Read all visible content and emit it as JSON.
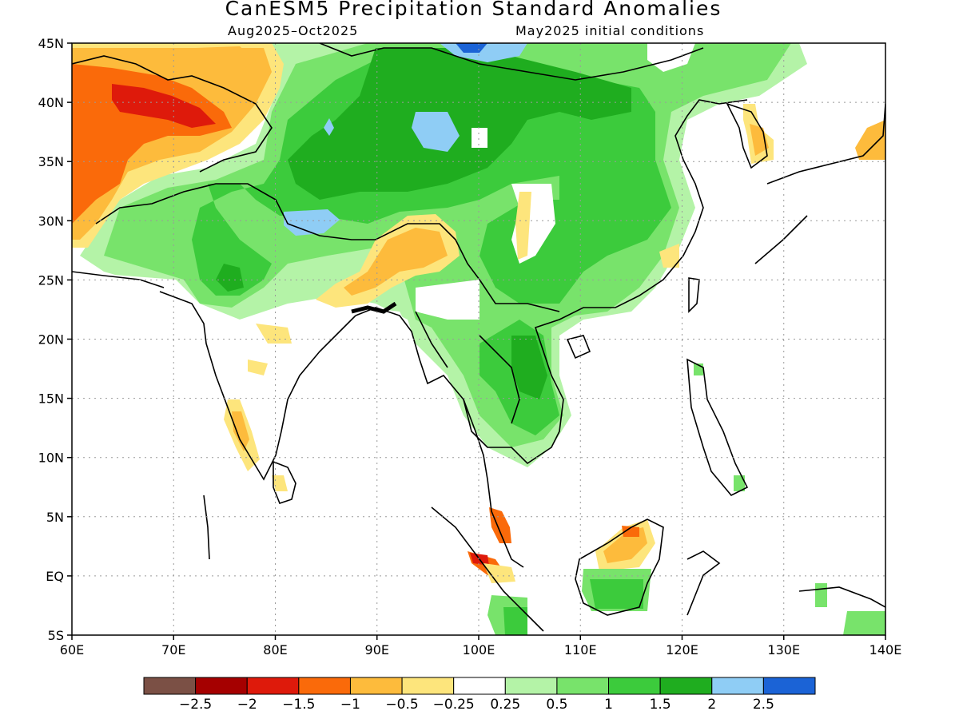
{
  "title": "CanESM5 Precipitation Standard Anomalies",
  "subtitle_left": "Aug2025–Oct2025",
  "subtitle_right": "May2025 initial conditions",
  "map": {
    "projection": "equirectangular",
    "lon_range": [
      60,
      140
    ],
    "lat_range": [
      -5,
      45
    ],
    "lat_ticks": [
      "45N",
      "40N",
      "35N",
      "30N",
      "25N",
      "20N",
      "15N",
      "10N",
      "5N",
      "EQ",
      "5S"
    ],
    "lon_ticks": [
      "60E",
      "70E",
      "80E",
      "90E",
      "100E",
      "110E",
      "120E",
      "130E",
      "140E"
    ],
    "gridlines": "dotted",
    "features": [
      "coastlines",
      "country-borders",
      "shaded-anomalies"
    ]
  },
  "colorbar": {
    "colors": [
      "#7b5045",
      "#a50000",
      "#de1a0b",
      "#fa6a0a",
      "#fdbb3c",
      "#fde57c",
      "#ffffff",
      "#b4f3a7",
      "#78e36b",
      "#3ccb3c",
      "#1fad1f",
      "#8fcdf5",
      "#1b63d6"
    ],
    "labels": [
      "−2.5",
      "−2",
      "−1.5",
      "−1",
      "−0.5",
      "−0.25",
      "0.25",
      "0.5",
      "1",
      "1.5",
      "2",
      "2.5"
    ]
  }
}
